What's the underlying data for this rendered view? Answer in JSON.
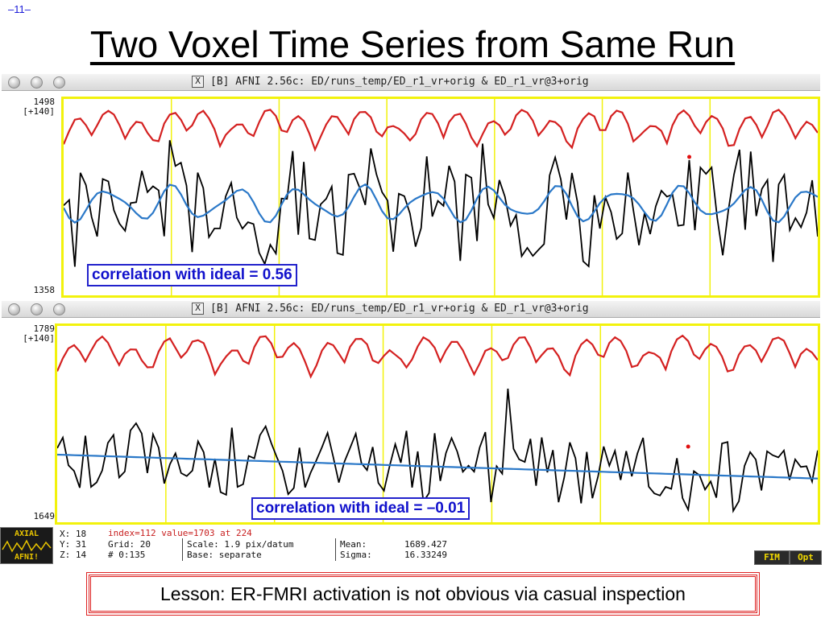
{
  "slide": {
    "number": "–11–",
    "title": "Two Voxel Time Series from Same Run",
    "lesson": "Lesson: ER-FMRI activation is not obvious via casual inspection"
  },
  "windows": [
    {
      "title": "[B] AFNI 2.56c: ED/runs_temp/ED_r1_vr+orig & ED_r1_vr@3+orig",
      "y_top": "1498",
      "y_range": "[+140]",
      "y_bottom": "1358",
      "correlation_label": "correlation with ideal = 0.56"
    },
    {
      "title": "[B] AFNI 2.56c: ED/runs_temp/ED_r1_vr+orig & ED_r1_vr@3+orig",
      "y_top": "1789",
      "y_range": "[+140]",
      "y_bottom": "1649",
      "correlation_label": "correlation with ideal = –0.01"
    }
  ],
  "info_panel": {
    "x": "X: 18",
    "y": "Y: 31",
    "z": "Z: 14",
    "index": "index=112 value=1703 at 224",
    "grid": "Grid:    20",
    "scale": "Scale: 1.9 pix/datum",
    "count": "#   0:135",
    "base": "Base: separate",
    "mean_label": "Mean:",
    "mean_value": "1689.427",
    "sigma_label": "Sigma:",
    "sigma_value": "16.33249",
    "axial_label": "AXIAL",
    "afni_label": "AFNI!",
    "fim_button": "FIM",
    "opt_button": "Opt"
  },
  "colors": {
    "ideal_red": "#d42020",
    "data_black": "#000000",
    "fit_blue": "#2a78c8",
    "grid_yellow": "#f2f20c",
    "label_blue": "#1111cc"
  }
}
